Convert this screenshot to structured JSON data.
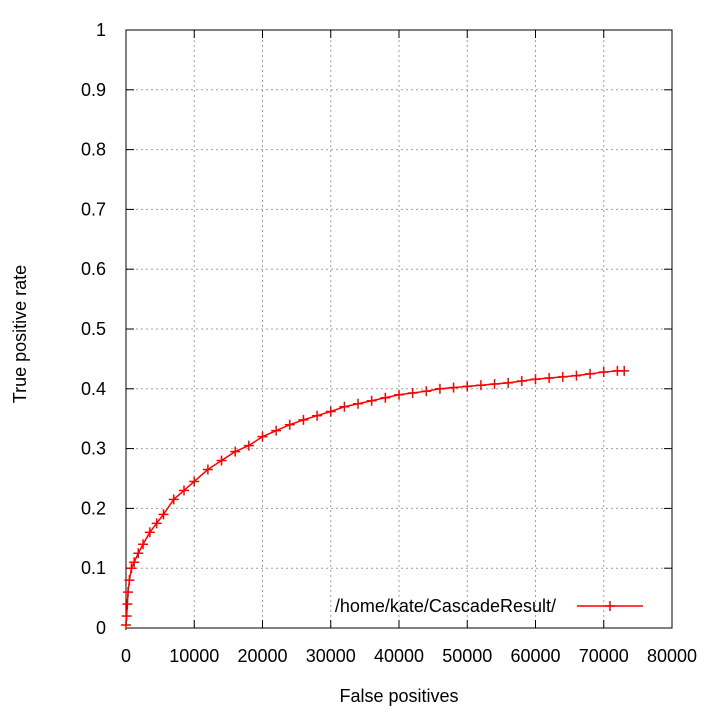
{
  "chart_data": {
    "type": "line",
    "marker": "plus",
    "title": "",
    "xlabel": "False positives",
    "ylabel": "True positive rate",
    "xlim": [
      0,
      80000
    ],
    "ylim": [
      0,
      1
    ],
    "grid": true,
    "legend_position": "bottom-right",
    "x_ticks": [
      0,
      10000,
      20000,
      30000,
      40000,
      50000,
      60000,
      70000,
      80000
    ],
    "x_tick_labels": [
      "0",
      "10000",
      "20000",
      "30000",
      "40000",
      "50000",
      "60000",
      "70000",
      "80000"
    ],
    "y_ticks": [
      0,
      0.1,
      0.2,
      0.3,
      0.4,
      0.5,
      0.6,
      0.7,
      0.8,
      0.9,
      1
    ],
    "y_tick_labels": [
      "0",
      "0.1",
      "0.2",
      "0.3",
      "0.4",
      "0.5",
      "0.6",
      "0.7",
      "0.8",
      "0.9",
      "1"
    ],
    "series": [
      {
        "name": "/home/kate/CascadeResult/",
        "color": "#ff0000",
        "x": [
          0,
          100,
          200,
          300,
          500,
          800,
          1200,
          1800,
          2500,
          3500,
          4500,
          5500,
          7000,
          8500,
          10000,
          12000,
          14000,
          16000,
          18000,
          20000,
          22000,
          24000,
          26000,
          28000,
          30000,
          32000,
          34000,
          36000,
          38000,
          40000,
          42000,
          44000,
          46000,
          48000,
          50000,
          52000,
          54000,
          56000,
          58000,
          60000,
          62000,
          64000,
          66000,
          68000,
          70000,
          72000,
          73000
        ],
        "y": [
          0.005,
          0.02,
          0.04,
          0.06,
          0.08,
          0.1,
          0.11,
          0.125,
          0.14,
          0.16,
          0.175,
          0.19,
          0.215,
          0.23,
          0.245,
          0.265,
          0.28,
          0.295,
          0.305,
          0.32,
          0.33,
          0.34,
          0.348,
          0.355,
          0.362,
          0.37,
          0.375,
          0.38,
          0.385,
          0.39,
          0.393,
          0.396,
          0.4,
          0.402,
          0.404,
          0.406,
          0.408,
          0.41,
          0.413,
          0.416,
          0.418,
          0.42,
          0.422,
          0.425,
          0.428,
          0.43,
          0.43
        ]
      }
    ]
  }
}
